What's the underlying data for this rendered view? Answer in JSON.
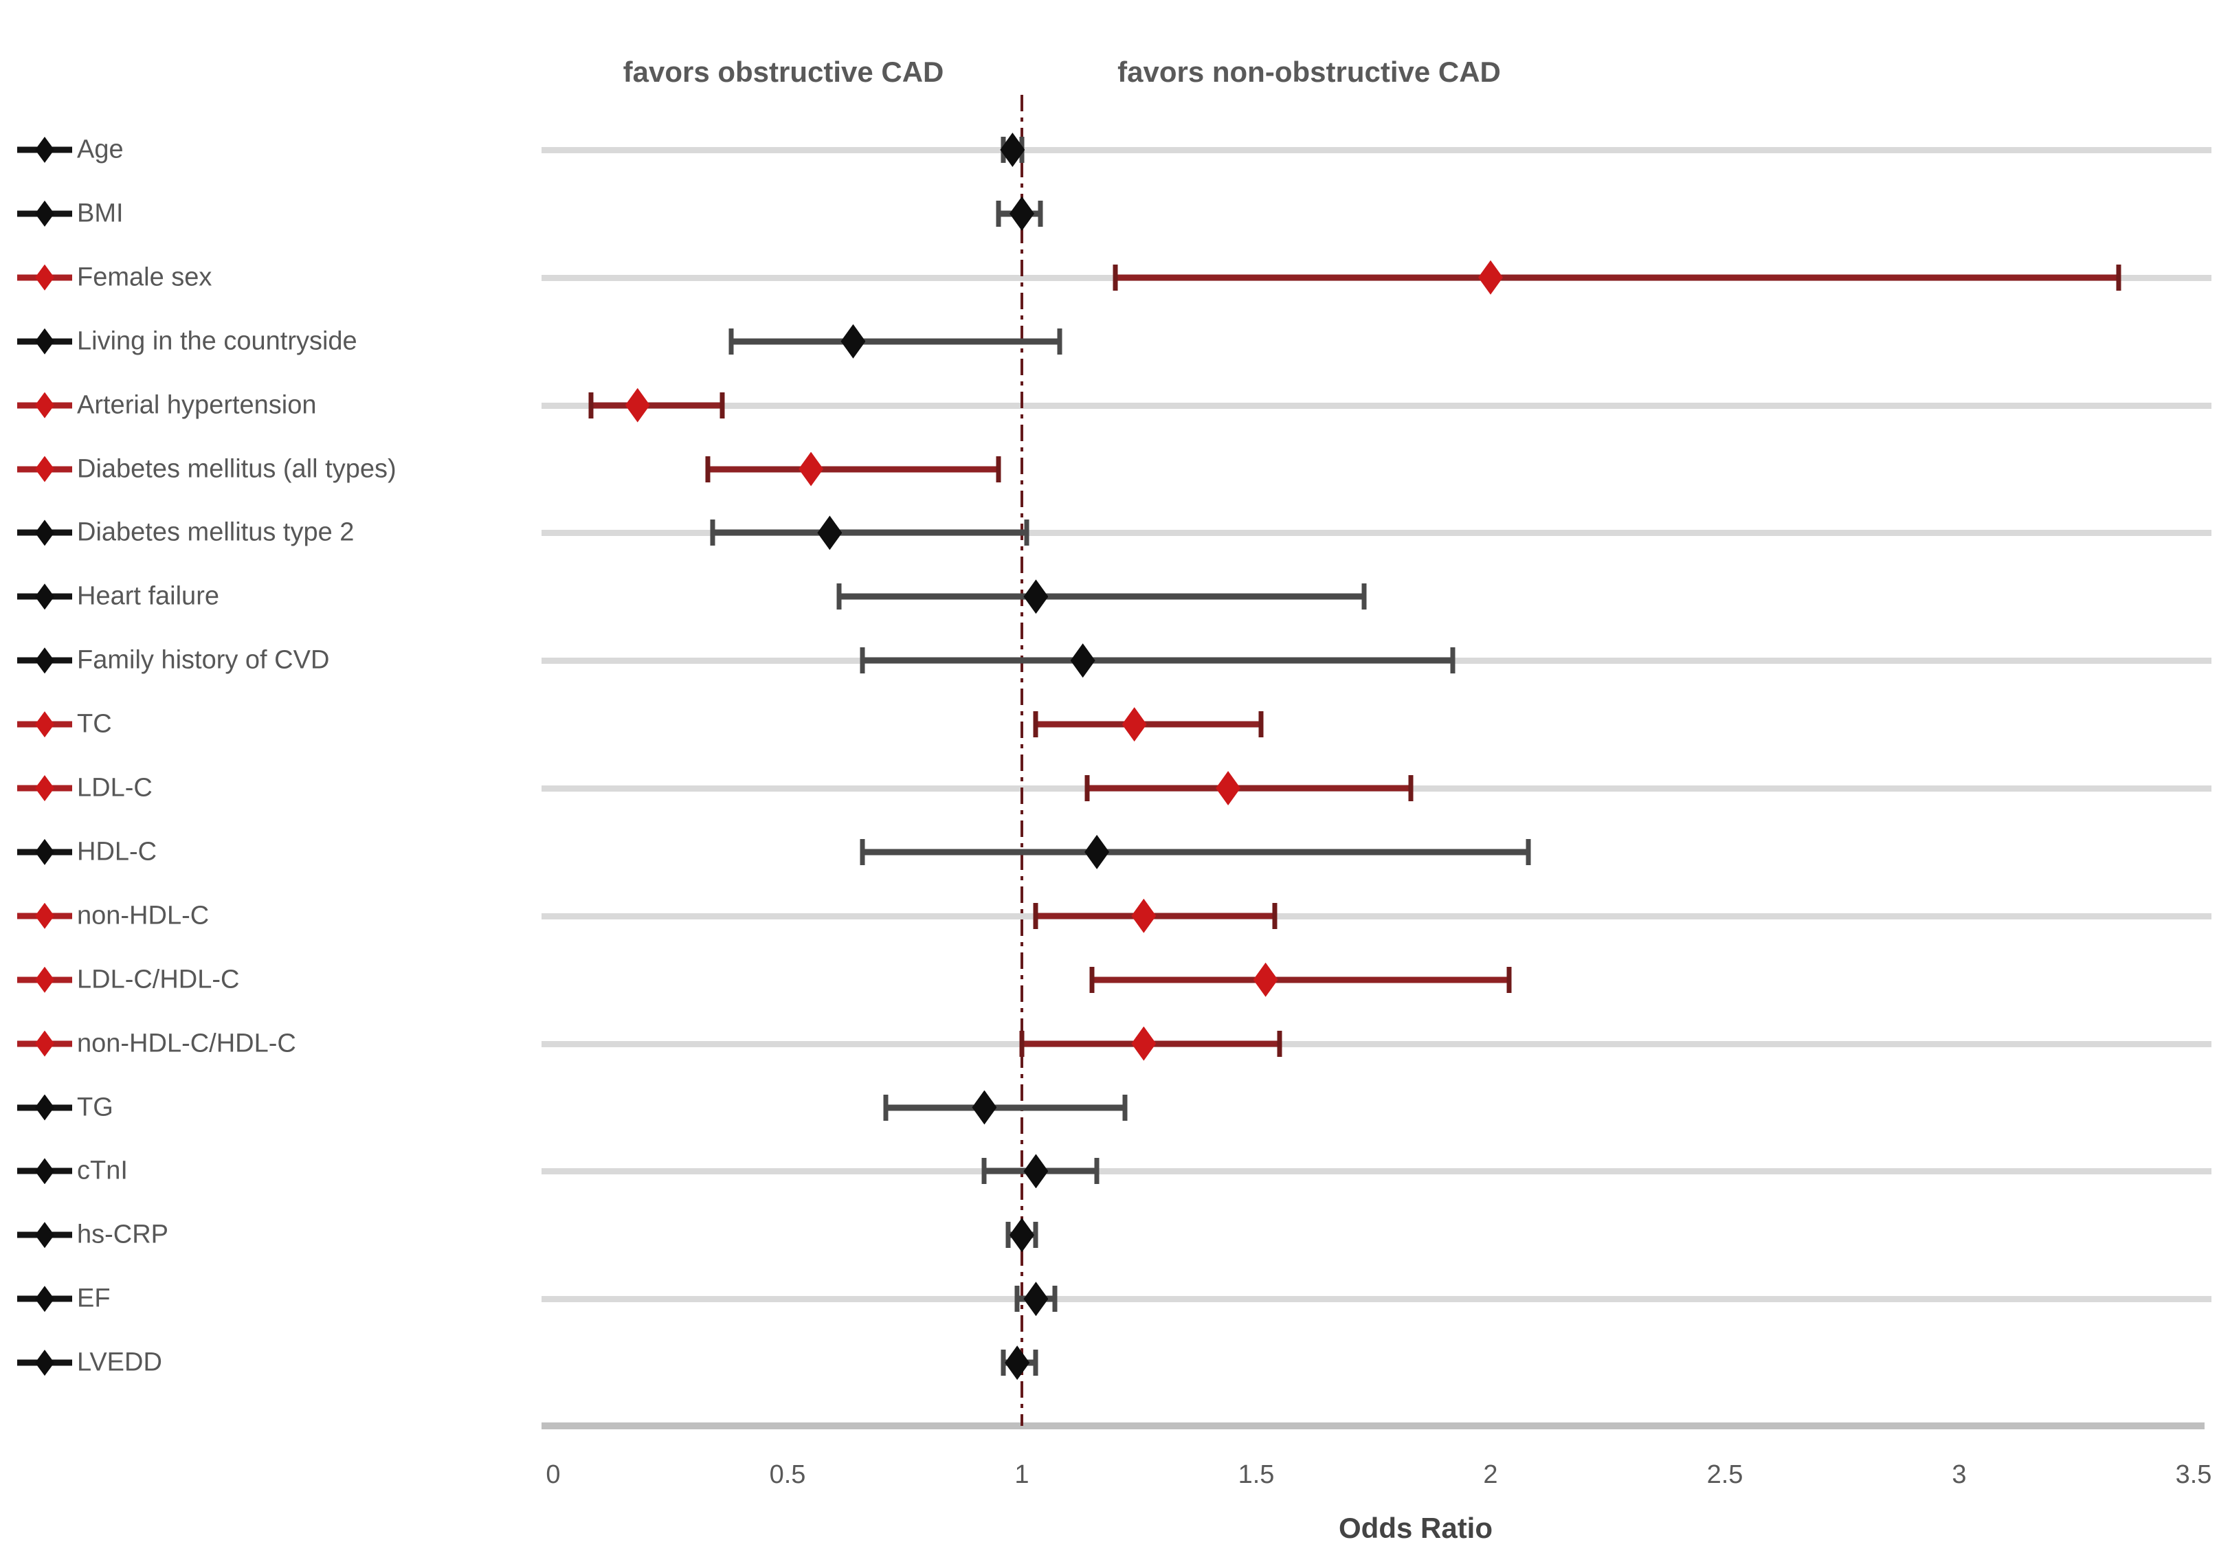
{
  "chart_data": {
    "type": "scatter",
    "subtype": "forest-plot",
    "title_left": "favors obstructive CAD",
    "title_right": "favors non-obstructive CAD",
    "xlabel": "Odds Ratio",
    "xlim": [
      0,
      3.5
    ],
    "x_ticks": [
      "0",
      "0.5",
      "1",
      "1.5",
      "2",
      "2.5",
      "3",
      "3.5"
    ],
    "reference_line_x": 1,
    "grid": "alternate-rows",
    "rows": [
      {
        "label": "Age",
        "or": 0.98,
        "ci_low": 0.96,
        "ci_high": 1.0,
        "color": "black"
      },
      {
        "label": "BMI",
        "or": 1.0,
        "ci_low": 0.95,
        "ci_high": 1.04,
        "color": "black"
      },
      {
        "label": "Female sex",
        "or": 2.0,
        "ci_low": 1.2,
        "ci_high": 3.34,
        "color": "red"
      },
      {
        "label": "Living in the countryside",
        "or": 0.64,
        "ci_low": 0.38,
        "ci_high": 1.08,
        "color": "black"
      },
      {
        "label": "Arterial hypertension",
        "or": 0.18,
        "ci_low": 0.08,
        "ci_high": 0.36,
        "color": "red"
      },
      {
        "label": "Diabetes mellitus (all types)",
        "or": 0.55,
        "ci_low": 0.33,
        "ci_high": 0.95,
        "color": "red"
      },
      {
        "label": "Diabetes mellitus type 2",
        "or": 0.59,
        "ci_low": 0.34,
        "ci_high": 1.01,
        "color": "black"
      },
      {
        "label": "Heart failure",
        "or": 1.03,
        "ci_low": 0.61,
        "ci_high": 1.73,
        "color": "black"
      },
      {
        "label": "Family history of CVD",
        "or": 1.13,
        "ci_low": 0.66,
        "ci_high": 1.92,
        "color": "black"
      },
      {
        "label": "TC",
        "or": 1.24,
        "ci_low": 1.03,
        "ci_high": 1.51,
        "color": "red"
      },
      {
        "label": "LDL-C",
        "or": 1.44,
        "ci_low": 1.14,
        "ci_high": 1.83,
        "color": "red"
      },
      {
        "label": "HDL-C",
        "or": 1.16,
        "ci_low": 0.66,
        "ci_high": 2.08,
        "color": "black"
      },
      {
        "label": "non-HDL-C",
        "or": 1.26,
        "ci_low": 1.03,
        "ci_high": 1.54,
        "color": "red"
      },
      {
        "label": "LDL-C/HDL-C",
        "or": 1.52,
        "ci_low": 1.15,
        "ci_high": 2.04,
        "color": "red"
      },
      {
        "label": "non-HDL-C/HDL-C",
        "or": 1.26,
        "ci_low": 1.0,
        "ci_high": 1.55,
        "color": "red"
      },
      {
        "label": "TG",
        "or": 0.92,
        "ci_low": 0.71,
        "ci_high": 1.22,
        "color": "black"
      },
      {
        "label": "cTnI",
        "or": 1.03,
        "ci_low": 0.92,
        "ci_high": 1.16,
        "color": "black"
      },
      {
        "label": "hs-CRP",
        "or": 1.0,
        "ci_low": 0.97,
        "ci_high": 1.03,
        "color": "black"
      },
      {
        "label": "EF",
        "or": 1.03,
        "ci_low": 0.99,
        "ci_high": 1.07,
        "color": "black"
      },
      {
        "label": "LVEDD",
        "or": 0.99,
        "ci_low": 0.96,
        "ci_high": 1.03,
        "color": "black"
      }
    ]
  },
  "colors": {
    "red_ci_line": "#8e2123",
    "red_ci_cap": "#6f1a1a",
    "red_diamond": "#cd1719",
    "red_legend_line": "#ab2023",
    "black_ci_line": "#4a4a4a",
    "black_ci_cap": "#4a4a4a",
    "black_diamond": "#0e0e0e",
    "black_legend_line": "#141414",
    "gridline": "#d9d9d9",
    "axis_line": "#bfbfbf",
    "reference_line": "#64191b",
    "label_text": "#575757",
    "tick_text": "#595959"
  }
}
